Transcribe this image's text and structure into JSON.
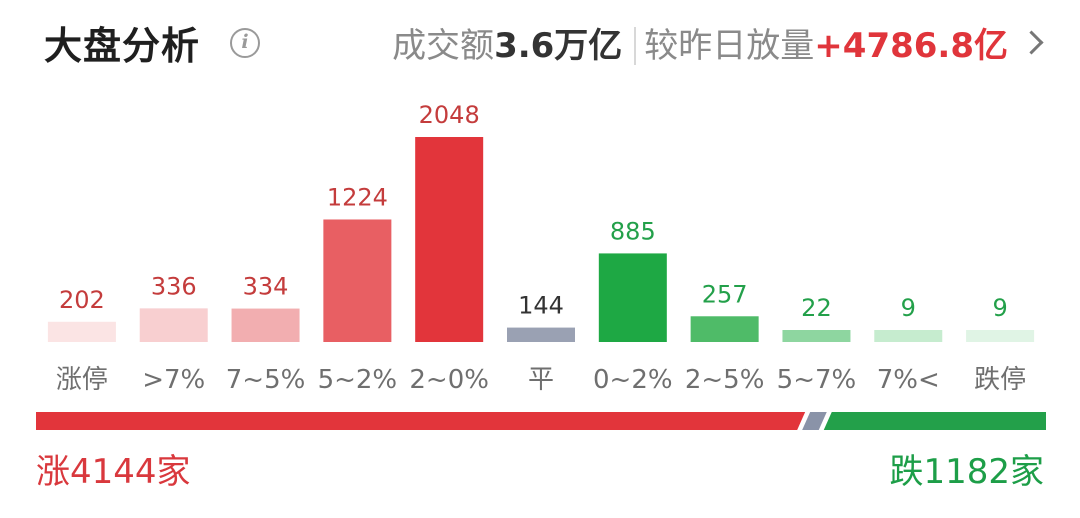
{
  "header": {
    "title": "大盘分析",
    "info_icon": "info-icon",
    "turnover_label": "成交额",
    "turnover_value": "3.6万亿",
    "compare_label": "较昨日放量",
    "compare_value": "+4786.8亿",
    "more_icon": "chevron-right-icon"
  },
  "chart_data": {
    "type": "bar",
    "categories": [
      "涨停",
      ">7%",
      "7~5%",
      "5~2%",
      "2~0%",
      "平",
      "0~2%",
      "2~5%",
      "5~7%",
      "7%<",
      "跌停"
    ],
    "values": [
      202,
      336,
      334,
      1224,
      2048,
      144,
      885,
      257,
      22,
      9,
      9
    ],
    "colors": [
      "#fbe4e4",
      "#f8cfd0",
      "#f2aeb0",
      "#e85f63",
      "#e2353b",
      "#9aa1b3",
      "#1ea844",
      "#4fbb68",
      "#8ed6a0",
      "#c6eccf",
      "#e0f4e5"
    ],
    "label_colors": [
      "#c43c3c",
      "#c43c3c",
      "#c43c3c",
      "#c43c3c",
      "#c43c3c",
      "#333333",
      "#23a04a",
      "#23a04a",
      "#23a04a",
      "#23a04a",
      "#23a04a"
    ],
    "ylim": [
      0,
      2048
    ]
  },
  "ratio_bar": {
    "up_color": "#e2353b",
    "flat_color": "#8a93a8",
    "down_color": "#23a04a",
    "up_count": 4144,
    "flat_count": 144,
    "down_count": 1182
  },
  "footer": {
    "up_text": "涨4144家",
    "down_text": "跌1182家"
  }
}
